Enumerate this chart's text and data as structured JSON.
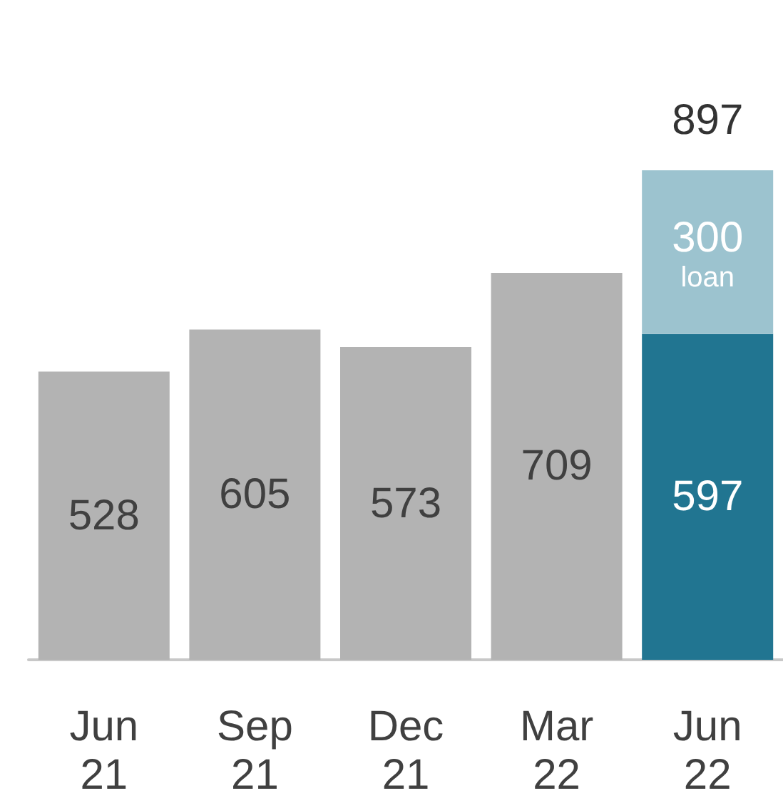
{
  "chart_data": {
    "type": "bar",
    "stacked": true,
    "data_labels": true,
    "legend": false,
    "categories": [
      "Jun 21",
      "Sep 21",
      "Dec 21",
      "Mar 22",
      "Jun 22"
    ],
    "series": [
      {
        "values": [
          528,
          605,
          573,
          709,
          597
        ],
        "colors": [
          "#b3b3b3",
          "#b3b3b3",
          "#b3b3b3",
          "#b3b3b3",
          "#217591"
        ]
      },
      {
        "name": "loan",
        "color": "#9cc3cf",
        "values": [
          null,
          null,
          null,
          null,
          300
        ]
      }
    ],
    "totals": [
      null,
      null,
      null,
      null,
      "897"
    ]
  }
}
